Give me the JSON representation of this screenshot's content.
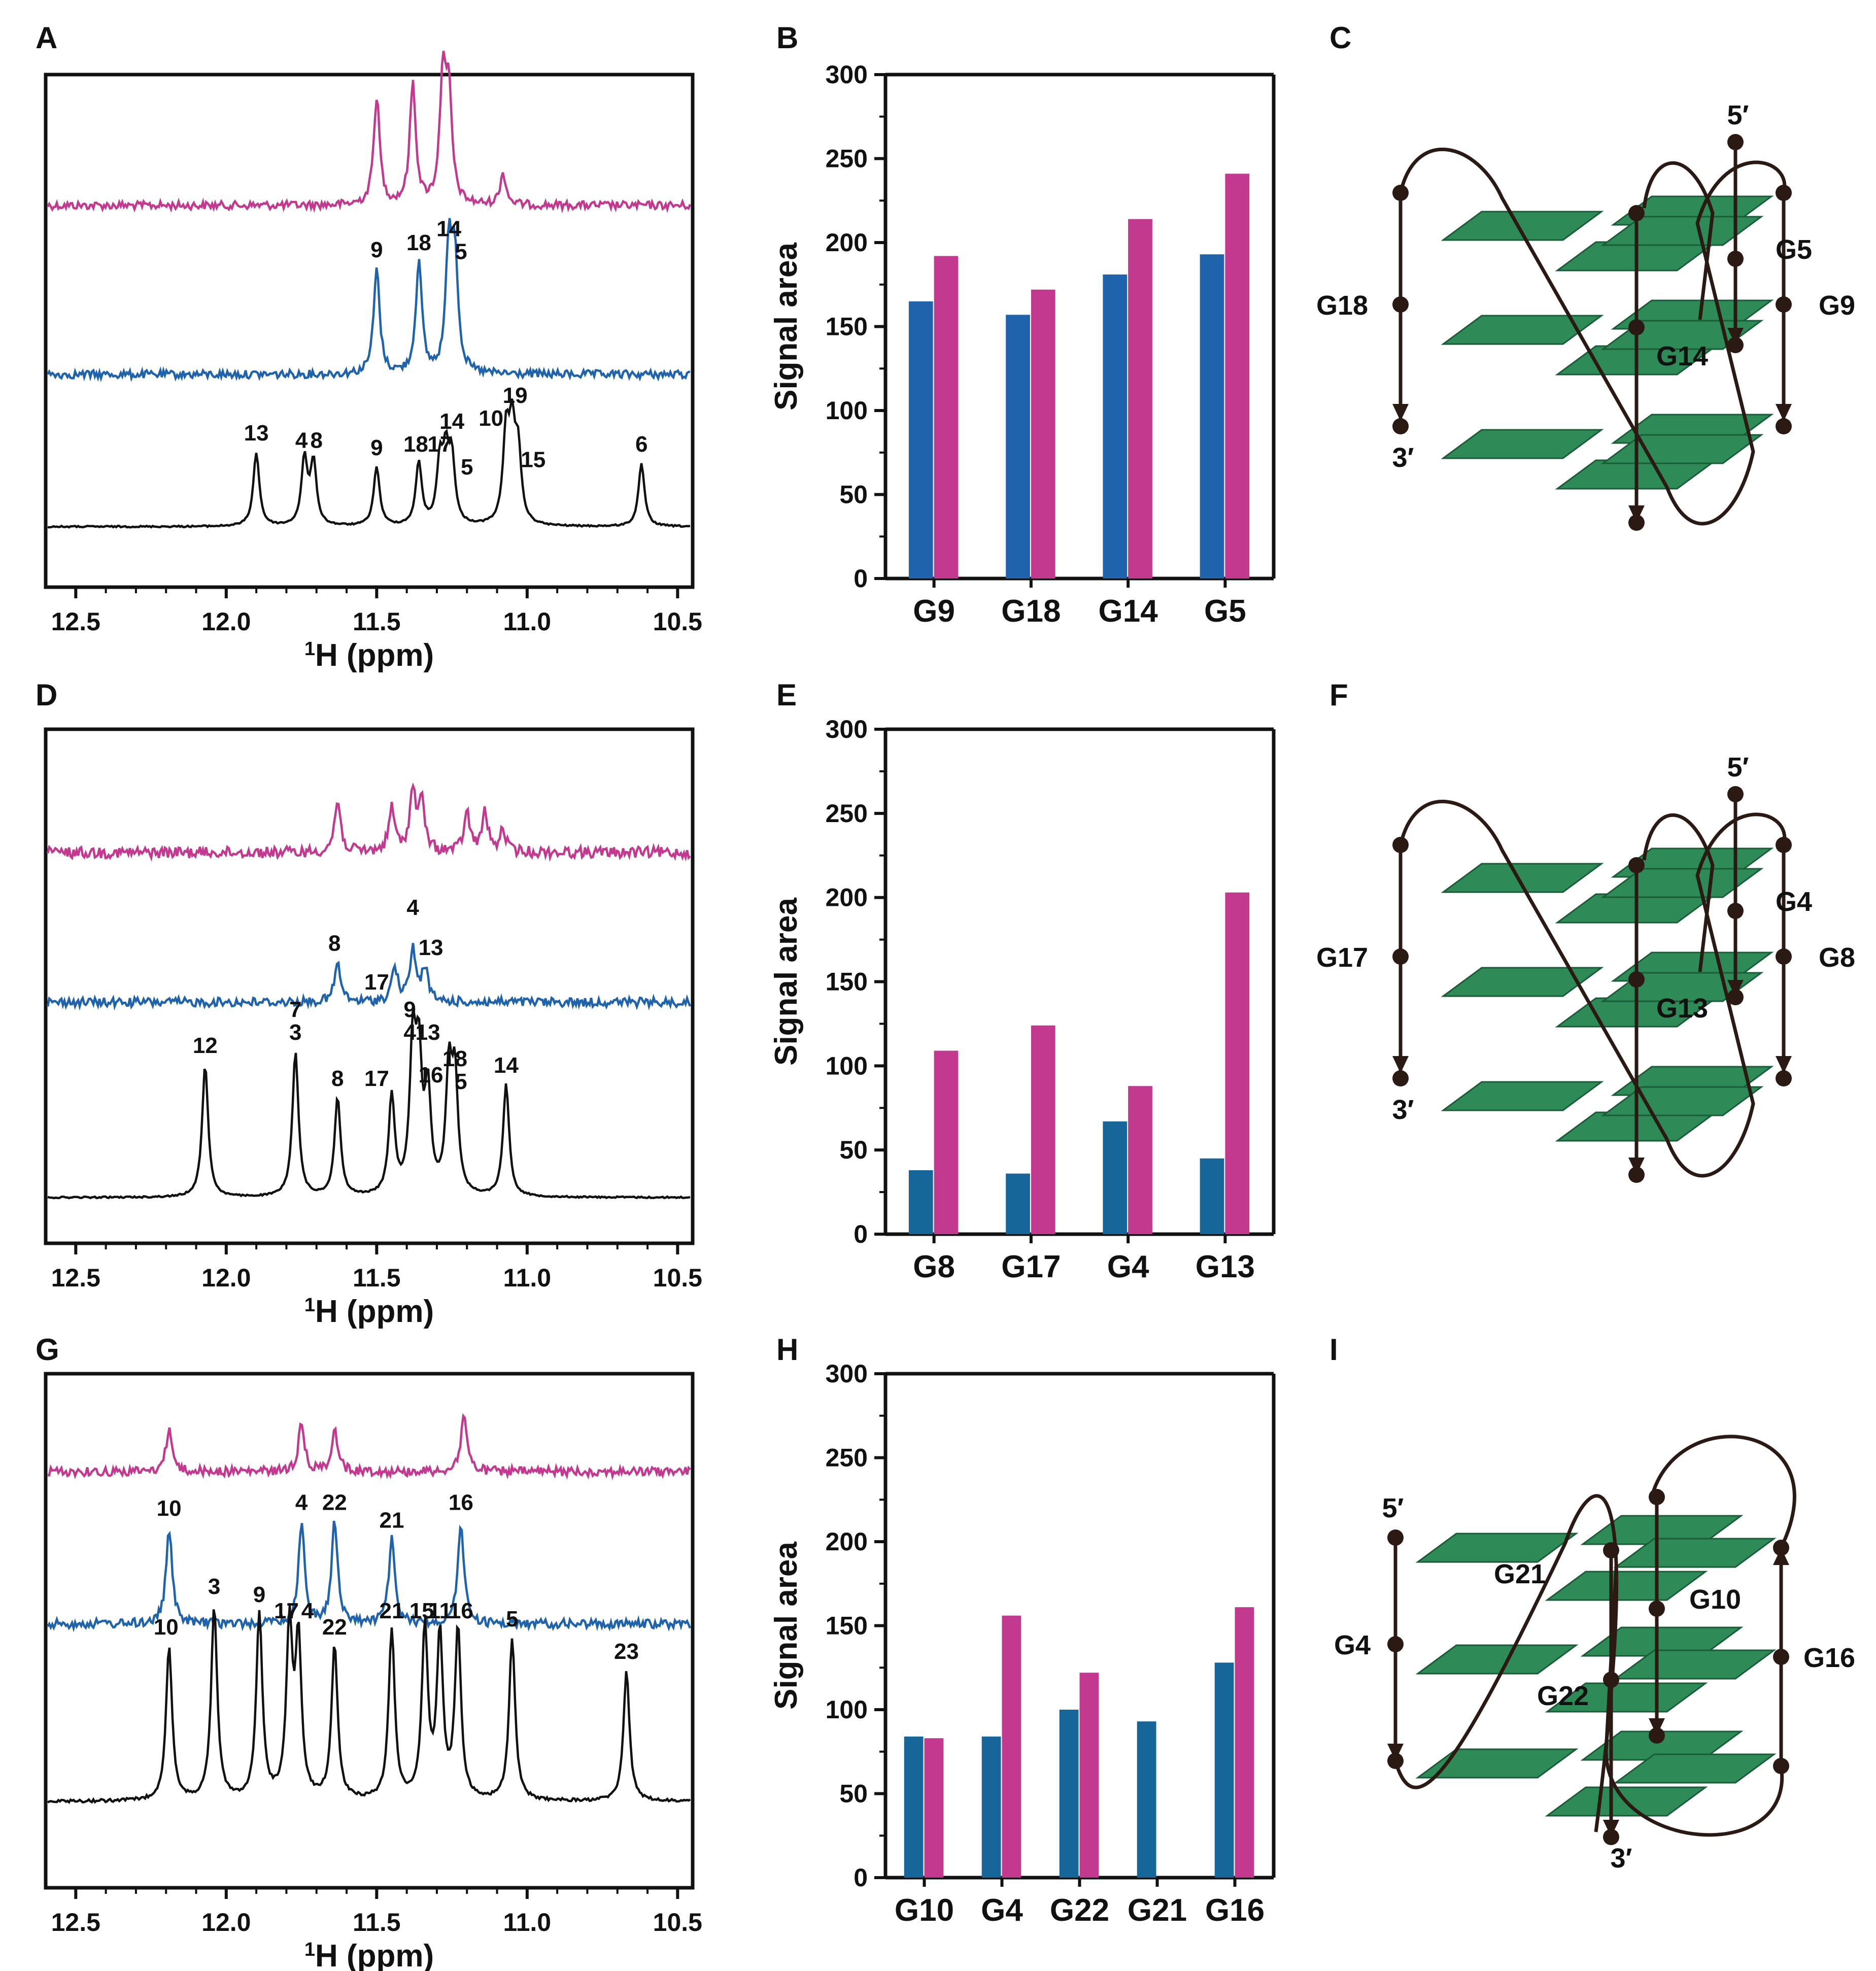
{
  "colors": {
    "pink": "#c2398f",
    "blue": "#1f63ad",
    "teal": "#17669a",
    "black": "#111111",
    "green": "#2e8b57",
    "green_edge": "#1a5c38",
    "dark": "#2b1a14"
  },
  "chart_data": [
    {
      "panel": "A",
      "type": "line",
      "title": "",
      "xlabel": "1H (ppm)",
      "xlim": [
        12.6,
        10.45
      ],
      "xticks": [
        "12.5",
        "12.0",
        "11.5",
        "11.0",
        "10.5"
      ],
      "series": [
        {
          "name": "pink",
          "color": "pink",
          "peaks": [
            {
              "ppm": 11.5,
              "h": 0.85
            },
            {
              "ppm": 11.38,
              "h": 0.95
            },
            {
              "ppm": 11.28,
              "h": 1.0
            },
            {
              "ppm": 11.26,
              "h": 0.8
            },
            {
              "ppm": 11.08,
              "h": 0.25
            }
          ]
        },
        {
          "name": "blue",
          "color": "blue",
          "peaks": [
            {
              "ppm": 11.5,
              "h": 0.75
            },
            {
              "ppm": 11.36,
              "h": 0.8
            },
            {
              "ppm": 11.26,
              "h": 0.9
            },
            {
              "ppm": 11.24,
              "h": 0.8
            }
          ]
        },
        {
          "name": "black",
          "color": "black",
          "peaks": [
            {
              "ppm": 11.9,
              "h": 1.0
            },
            {
              "ppm": 11.74,
              "h": 0.9
            },
            {
              "ppm": 11.71,
              "h": 0.85
            },
            {
              "ppm": 11.5,
              "h": 0.8
            },
            {
              "ppm": 11.36,
              "h": 0.85
            },
            {
              "ppm": 11.29,
              "h": 0.8
            },
            {
              "ppm": 11.27,
              "h": 0.85
            },
            {
              "ppm": 11.25,
              "h": 0.85
            },
            {
              "ppm": 11.07,
              "h": 1.2
            },
            {
              "ppm": 11.05,
              "h": 1.15
            },
            {
              "ppm": 11.03,
              "h": 0.95
            },
            {
              "ppm": 10.62,
              "h": 0.85
            }
          ]
        }
      ],
      "peak_labels": [
        {
          "text": "9",
          "ppm": 11.5,
          "trace": "blue"
        },
        {
          "text": "18",
          "ppm": 11.36,
          "trace": "blue"
        },
        {
          "text": "14",
          "ppm": 11.26,
          "trace": "blue"
        },
        {
          "text": "5",
          "ppm": 11.22,
          "trace": "blue",
          "dy": 1
        },
        {
          "text": "13",
          "ppm": 11.9,
          "trace": "black"
        },
        {
          "text": "4",
          "ppm": 11.75,
          "trace": "black"
        },
        {
          "text": "8",
          "ppm": 11.7,
          "trace": "black"
        },
        {
          "text": "9",
          "ppm": 11.5,
          "trace": "black"
        },
        {
          "text": "18",
          "ppm": 11.37,
          "trace": "black"
        },
        {
          "text": "17",
          "ppm": 11.29,
          "trace": "black"
        },
        {
          "text": "14",
          "ppm": 11.25,
          "trace": "black",
          "dy": -1
        },
        {
          "text": "5",
          "ppm": 11.2,
          "trace": "black",
          "dy": 1
        },
        {
          "text": "10",
          "ppm": 11.12,
          "trace": "black"
        },
        {
          "text": "19",
          "ppm": 11.04,
          "trace": "black",
          "dy": -1
        },
        {
          "text": "15",
          "ppm": 10.98,
          "trace": "black",
          "dy": 1
        },
        {
          "text": "6",
          "ppm": 10.62,
          "trace": "black"
        }
      ]
    },
    {
      "panel": "B",
      "type": "bar",
      "ylabel": "Signal area",
      "ylim": [
        0,
        300
      ],
      "yticks": [
        "0",
        "50",
        "100",
        "150",
        "200",
        "250",
        "300"
      ],
      "categories": [
        "G9",
        "G18",
        "G14",
        "G5"
      ],
      "series": [
        {
          "name": "blue",
          "color": "blue",
          "values": [
            165,
            157,
            181,
            193
          ]
        },
        {
          "name": "pink",
          "color": "pink",
          "values": [
            192,
            172,
            214,
            241
          ]
        }
      ]
    },
    {
      "panel": "D",
      "type": "line",
      "title": "",
      "xlabel": "1H (ppm)",
      "xlim": [
        12.6,
        10.45
      ],
      "xticks": [
        "12.5",
        "12.0",
        "11.5",
        "11.0",
        "10.5"
      ],
      "series": [
        {
          "name": "pink",
          "color": "pink",
          "peaks": [
            {
              "ppm": 11.63,
              "h": 0.6
            },
            {
              "ppm": 11.45,
              "h": 0.5
            },
            {
              "ppm": 11.38,
              "h": 0.7
            },
            {
              "ppm": 11.35,
              "h": 0.55
            },
            {
              "ppm": 11.2,
              "h": 0.45
            },
            {
              "ppm": 11.14,
              "h": 0.45
            },
            {
              "ppm": 11.08,
              "h": 0.25
            }
          ]
        },
        {
          "name": "blue",
          "color": "blue",
          "peaks": [
            {
              "ppm": 11.63,
              "h": 0.45
            },
            {
              "ppm": 11.44,
              "h": 0.4
            },
            {
              "ppm": 11.38,
              "h": 0.6
            },
            {
              "ppm": 11.34,
              "h": 0.4
            }
          ]
        },
        {
          "name": "black",
          "color": "black",
          "peaks": [
            {
              "ppm": 12.07,
              "h": 1.0
            },
            {
              "ppm": 11.77,
              "h": 1.1
            },
            {
              "ppm": 11.63,
              "h": 0.75
            },
            {
              "ppm": 11.45,
              "h": 0.75
            },
            {
              "ppm": 11.38,
              "h": 1.1
            },
            {
              "ppm": 11.36,
              "h": 0.95
            },
            {
              "ppm": 11.33,
              "h": 0.75
            },
            {
              "ppm": 11.26,
              "h": 0.9
            },
            {
              "ppm": 11.24,
              "h": 0.85
            },
            {
              "ppm": 11.07,
              "h": 0.85
            }
          ]
        }
      ],
      "peak_labels": [
        {
          "text": "8",
          "ppm": 11.64,
          "trace": "blue"
        },
        {
          "text": "17",
          "ppm": 11.5,
          "trace": "blue"
        },
        {
          "text": "4",
          "ppm": 11.38,
          "trace": "blue",
          "dy": -1
        },
        {
          "text": "13",
          "ppm": 11.32,
          "trace": "blue"
        },
        {
          "text": "12",
          "ppm": 12.07,
          "trace": "black"
        },
        {
          "text": "7",
          "ppm": 11.77,
          "trace": "black",
          "dy": -1
        },
        {
          "text": "3",
          "ppm": 11.77,
          "trace": "black"
        },
        {
          "text": "8",
          "ppm": 11.63,
          "trace": "black"
        },
        {
          "text": "17",
          "ppm": 11.5,
          "trace": "black"
        },
        {
          "text": "9",
          "ppm": 11.39,
          "trace": "black",
          "dy": -1
        },
        {
          "text": "4",
          "ppm": 11.39,
          "trace": "black"
        },
        {
          "text": "13",
          "ppm": 11.33,
          "trace": "black"
        },
        {
          "text": "16",
          "ppm": 11.32,
          "trace": "black",
          "dy": 1
        },
        {
          "text": "18",
          "ppm": 11.24,
          "trace": "black"
        },
        {
          "text": "5",
          "ppm": 11.22,
          "trace": "black",
          "dy": 1
        },
        {
          "text": "14",
          "ppm": 11.07,
          "trace": "black"
        }
      ]
    },
    {
      "panel": "E",
      "type": "bar",
      "ylabel": "Signal area",
      "ylim": [
        0,
        300
      ],
      "yticks": [
        "0",
        "50",
        "100",
        "150",
        "200",
        "250",
        "300"
      ],
      "categories": [
        "G8",
        "G17",
        "G4",
        "G13"
      ],
      "series": [
        {
          "name": "blue",
          "color": "teal",
          "values": [
            38,
            36,
            67,
            45
          ]
        },
        {
          "name": "pink",
          "color": "pink",
          "values": [
            109,
            124,
            88,
            203
          ]
        }
      ]
    },
    {
      "panel": "G",
      "type": "line",
      "title": "",
      "xlabel": "1H (ppm)",
      "xlim": [
        12.6,
        10.45
      ],
      "xticks": [
        "12.5",
        "12.0",
        "11.5",
        "11.0",
        "10.5"
      ],
      "series": [
        {
          "name": "pink",
          "color": "pink",
          "peaks": [
            {
              "ppm": 12.19,
              "h": 0.45
            },
            {
              "ppm": 11.75,
              "h": 0.5
            },
            {
              "ppm": 11.64,
              "h": 0.45
            },
            {
              "ppm": 11.21,
              "h": 0.6
            }
          ]
        },
        {
          "name": "blue",
          "color": "blue",
          "peaks": [
            {
              "ppm": 12.19,
              "h": 0.8
            },
            {
              "ppm": 11.75,
              "h": 0.85
            },
            {
              "ppm": 11.64,
              "h": 0.85
            },
            {
              "ppm": 11.45,
              "h": 0.7
            },
            {
              "ppm": 11.22,
              "h": 0.85
            }
          ]
        },
        {
          "name": "black",
          "color": "black",
          "peaks": [
            {
              "ppm": 12.19,
              "h": 0.95
            },
            {
              "ppm": 12.04,
              "h": 1.2
            },
            {
              "ppm": 11.89,
              "h": 1.15
            },
            {
              "ppm": 11.79,
              "h": 1.05
            },
            {
              "ppm": 11.76,
              "h": 0.95
            },
            {
              "ppm": 11.64,
              "h": 0.95
            },
            {
              "ppm": 11.45,
              "h": 1.05
            },
            {
              "ppm": 11.34,
              "h": 1.05
            },
            {
              "ppm": 11.29,
              "h": 1.0
            },
            {
              "ppm": 11.23,
              "h": 1.05
            },
            {
              "ppm": 11.05,
              "h": 1.0
            },
            {
              "ppm": 10.67,
              "h": 0.8
            }
          ]
        }
      ],
      "peak_labels": [
        {
          "text": "10",
          "ppm": 12.19,
          "trace": "blue"
        },
        {
          "text": "4",
          "ppm": 11.75,
          "trace": "blue"
        },
        {
          "text": "22",
          "ppm": 11.64,
          "trace": "blue"
        },
        {
          "text": "21",
          "ppm": 11.45,
          "trace": "blue"
        },
        {
          "text": "16",
          "ppm": 11.22,
          "trace": "blue"
        },
        {
          "text": "10",
          "ppm": 12.2,
          "trace": "black"
        },
        {
          "text": "3",
          "ppm": 12.04,
          "trace": "black"
        },
        {
          "text": "9",
          "ppm": 11.89,
          "trace": "black"
        },
        {
          "text": "17",
          "ppm": 11.8,
          "trace": "black"
        },
        {
          "text": "4",
          "ppm": 11.73,
          "trace": "black"
        },
        {
          "text": "22",
          "ppm": 11.64,
          "trace": "black"
        },
        {
          "text": "21",
          "ppm": 11.45,
          "trace": "black"
        },
        {
          "text": "15",
          "ppm": 11.35,
          "trace": "black"
        },
        {
          "text": "11",
          "ppm": 11.29,
          "trace": "black"
        },
        {
          "text": "16",
          "ppm": 11.22,
          "trace": "black"
        },
        {
          "text": "5",
          "ppm": 11.05,
          "trace": "black"
        },
        {
          "text": "23",
          "ppm": 10.67,
          "trace": "black"
        }
      ]
    },
    {
      "panel": "H",
      "type": "bar",
      "ylabel": "Signal area",
      "ylim": [
        0,
        300
      ],
      "yticks": [
        "0",
        "50",
        "100",
        "150",
        "200",
        "250",
        "300"
      ],
      "categories": [
        "G10",
        "G4",
        "G22",
        "G21",
        "G16"
      ],
      "series": [
        {
          "name": "blue",
          "color": "teal",
          "values": [
            84,
            84,
            100,
            93,
            128
          ]
        },
        {
          "name": "pink",
          "color": "pink",
          "values": [
            83,
            156,
            122,
            null,
            161
          ]
        }
      ]
    }
  ],
  "panel_letters": [
    "A",
    "B",
    "C",
    "D",
    "E",
    "F",
    "G",
    "H",
    "I"
  ],
  "structures": [
    {
      "panel": "C",
      "five_prime": "5′",
      "three_prime": "3′",
      "left": "G18",
      "right": "G9",
      "center_top": "G5",
      "center_bottom": "G14"
    },
    {
      "panel": "F",
      "five_prime": "5′",
      "three_prime": "3′",
      "left": "G17",
      "right": "G8",
      "center_top": "G4",
      "center_bottom": "G13"
    },
    {
      "panel": "I",
      "five_prime": "5′",
      "three_prime": "3′",
      "left": "G4",
      "right": "G16",
      "center_a": "G21",
      "center_b": "G10",
      "center_c": "G22"
    }
  ]
}
